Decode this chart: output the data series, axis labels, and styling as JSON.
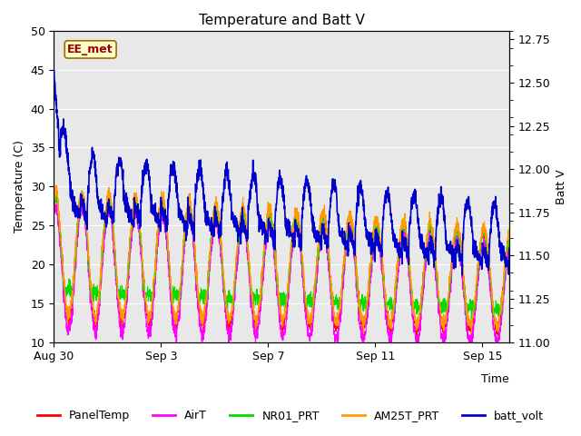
{
  "title": "Temperature and Batt V",
  "xlabel": "Time",
  "ylabel_left": "Temperature (C)",
  "ylabel_right": "Batt V",
  "annotation": "EE_met",
  "ylim_left": [
    10,
    50
  ],
  "ylim_right": [
    11.0,
    12.8
  ],
  "background_color": "#ffffff",
  "plot_bg_color": "#e8e8e8",
  "series_colors": {
    "PanelTemp": "#ff0000",
    "AirT": "#ff00ff",
    "NR01_PRT": "#00dd00",
    "AM25T_PRT": "#ff9900",
    "batt_volt": "#0000cc"
  },
  "series_linewidth": 0.8,
  "batt_linewidth": 1.2,
  "tick_dates": [
    "Aug 30",
    "Sep 3",
    "Sep 7",
    "Sep 11",
    "Sep 15"
  ],
  "tick_positions": [
    0,
    4,
    8,
    12,
    16
  ],
  "num_days": 17,
  "grid_color": "#ffffff",
  "legend_fontsize": 9,
  "axis_fontsize": 9,
  "title_fontsize": 11
}
